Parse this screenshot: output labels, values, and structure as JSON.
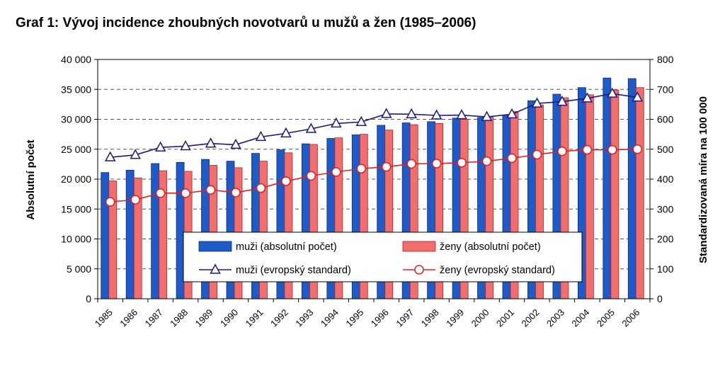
{
  "header": {
    "title": "Graf 1: Vývoj incidence zhoubných novotvarů u mužů a žen (1985–2006)"
  },
  "chart_data": {
    "type": "bar",
    "categories": [
      "1985",
      "1986",
      "1987",
      "1988",
      "1989",
      "1990",
      "1991",
      "1992",
      "1993",
      "1994",
      "1995",
      "1996",
      "1997",
      "1998",
      "1999",
      "2000",
      "2001",
      "2002",
      "2003",
      "2004",
      "2005",
      "2006"
    ],
    "series": [
      {
        "name": "muži (absolutní počet)",
        "kind": "bar",
        "axis": "left",
        "color": "#1F5BC8",
        "values": [
          21100,
          21500,
          22600,
          22800,
          23300,
          23000,
          24300,
          24900,
          25900,
          26800,
          27400,
          29000,
          29400,
          29600,
          30200,
          30300,
          30700,
          33100,
          34200,
          35300,
          36900,
          36800
        ]
      },
      {
        "name": "ženy (absolutní počet)",
        "kind": "bar",
        "axis": "left",
        "color": "#F06E6E",
        "values": [
          19700,
          20200,
          21400,
          21300,
          22300,
          21900,
          23000,
          24400,
          25800,
          26900,
          27500,
          28200,
          29100,
          29300,
          30000,
          30400,
          31300,
          32400,
          33600,
          34100,
          34900,
          35300
        ]
      },
      {
        "name": "muži (evropský standard)",
        "kind": "line",
        "axis": "right",
        "color": "#1A1A80",
        "values": [
          473,
          481,
          506,
          510,
          519,
          515,
          541,
          553,
          568,
          586,
          591,
          618,
          617,
          613,
          614,
          608,
          617,
          653,
          659,
          670,
          686,
          673
        ]
      },
      {
        "name": "ženy (evropský standard)",
        "kind": "line",
        "axis": "right",
        "color": "#E02020",
        "values": [
          324,
          331,
          353,
          353,
          364,
          355,
          370,
          393,
          411,
          424,
          435,
          441,
          451,
          452,
          455,
          460,
          470,
          482,
          493,
          498,
          498,
          500
        ]
      }
    ],
    "ylabel": "Absolutní počet",
    "y2label": "Standardizovaná míra na 100 000",
    "ylim": [
      0,
      40000
    ],
    "y2lim": [
      0,
      800
    ],
    "yticks": [
      "0",
      "5 000",
      "10 000",
      "15 000",
      "20 000",
      "25 000",
      "30 000",
      "35 000",
      "40 000"
    ],
    "y2ticks": [
      "0",
      "100",
      "200",
      "300",
      "400",
      "500",
      "600",
      "700",
      "800"
    ],
    "grid": true,
    "legend_position": "bottom-center"
  }
}
